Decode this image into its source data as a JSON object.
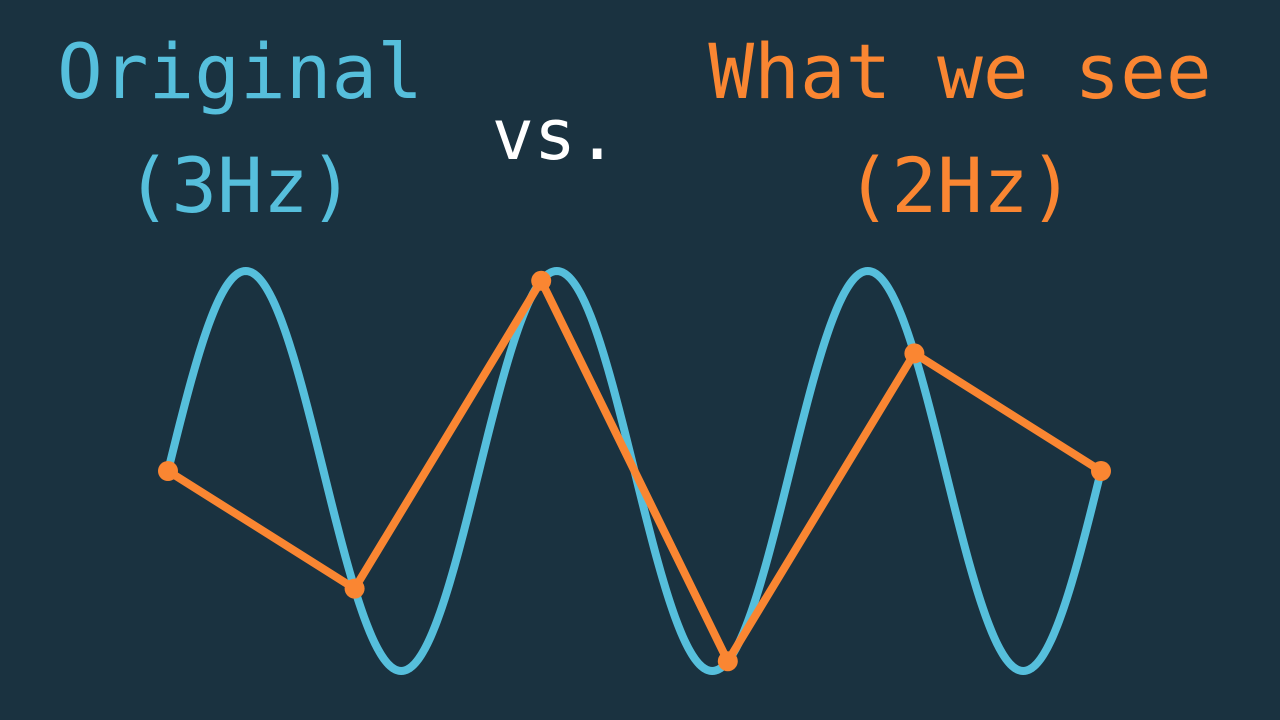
{
  "labels": {
    "original_title": "Original",
    "original_freq": "(3Hz)",
    "vs": "vs.",
    "seen_title": "What we see",
    "seen_freq": "(2Hz)"
  },
  "colors": {
    "background": "#1a3240",
    "original": "#56bfdc",
    "seen": "#fa8632",
    "vs": "#ffffff"
  },
  "signal": {
    "original_frequency_hz": 3,
    "seen_frequency_hz": 2,
    "samples": [
      {
        "t": 0.0,
        "y": 0.0
      },
      {
        "t": 0.2,
        "y": -0.588
      },
      {
        "t": 0.4,
        "y": 0.951
      },
      {
        "t": 0.6,
        "y": -0.951
      },
      {
        "t": 0.8,
        "y": 0.588
      },
      {
        "t": 1.0,
        "y": 0.0
      }
    ]
  }
}
